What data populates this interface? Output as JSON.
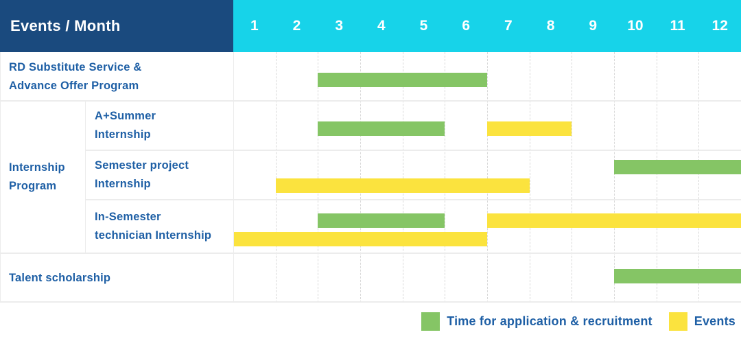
{
  "colors": {
    "header_bg": "#1a4a7e",
    "months_bg": "#17d3e9",
    "application": "#85c565",
    "events": "#fbe33e",
    "label_text": "#1e5fa5",
    "header_text": "#ffffff",
    "grid_solid": "#ececec",
    "grid_dashed": "#d8d8d8"
  },
  "header": {
    "events_month_label": "Events / Month"
  },
  "chart_data": {
    "type": "bar",
    "subtype": "gantt-schedule",
    "title": "Events / Month",
    "x_axis": {
      "label": "Month",
      "categories": [
        "1",
        "2",
        "3",
        "4",
        "5",
        "6",
        "7",
        "8",
        "9",
        "10",
        "11",
        "12"
      ],
      "range": [
        1,
        12
      ],
      "grid": "dashed-vertical"
    },
    "legend": [
      {
        "key": "application",
        "label": "Time for application & recruitment",
        "color": "#85c565",
        "position": "bottom-right"
      },
      {
        "key": "events",
        "label": "Events",
        "color": "#fbe33e",
        "position": "bottom-right"
      }
    ],
    "rows": [
      {
        "group": "",
        "label": "RD Substitute Service &\nAdvance Offer Program",
        "bars": [
          {
            "series": "application",
            "start_month": 3,
            "end_month": 6,
            "track": 0
          }
        ]
      },
      {
        "group": "Internship\nProgram",
        "label": "A+Summer\nInternship",
        "bars": [
          {
            "series": "application",
            "start_month": 3,
            "end_month": 5,
            "track": 0
          },
          {
            "series": "events",
            "start_month": 7,
            "end_month": 8,
            "track": 0
          }
        ]
      },
      {
        "group": "Internship\nProgram",
        "label": "Semester project\nInternship",
        "bars": [
          {
            "series": "application",
            "start_month": 10,
            "end_month": 12,
            "track": 0
          },
          {
            "series": "events",
            "start_month": 2,
            "end_month": 7,
            "track": 1
          }
        ]
      },
      {
        "group": "Internship\nProgram",
        "label": "In-Semester\ntechnician Internship",
        "bars": [
          {
            "series": "application",
            "start_month": 3,
            "end_month": 5,
            "track": 0
          },
          {
            "series": "events",
            "start_month": 7,
            "end_month": 12,
            "track": 0
          },
          {
            "series": "events",
            "start_month": 1,
            "end_month": 6,
            "track": 1
          }
        ]
      },
      {
        "group": "",
        "label": "Talent scholarship",
        "bars": [
          {
            "series": "application",
            "start_month": 10,
            "end_month": 12,
            "track": 0
          }
        ]
      }
    ]
  }
}
